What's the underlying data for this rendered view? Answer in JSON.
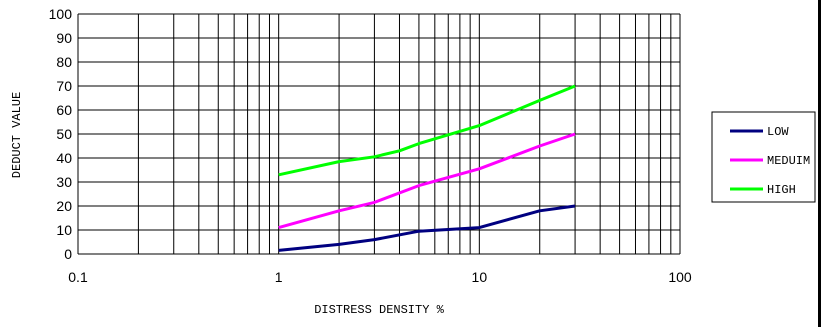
{
  "chart_data": {
    "type": "line",
    "title": "",
    "xlabel": "DISTRESS DENSITY %",
    "ylabel": "DEDUCT VALUE",
    "x_scale": "log",
    "xlim": [
      0.1,
      100
    ],
    "ylim": [
      0,
      100
    ],
    "x_ticks": [
      0.1,
      1,
      10,
      100
    ],
    "x_tick_labels": [
      "0.1",
      "1",
      "10",
      "100"
    ],
    "y_ticks": [
      0,
      10,
      20,
      30,
      40,
      50,
      60,
      70,
      80,
      90,
      100
    ],
    "y_tick_labels": [
      "0",
      "10",
      "20",
      "30",
      "40",
      "50",
      "60",
      "70",
      "80",
      "90",
      "100"
    ],
    "grid": true,
    "legend_position": "right",
    "series": [
      {
        "name": "LOW",
        "color": "#000080",
        "x": [
          1,
          2,
          3,
          5,
          10,
          20,
          30
        ],
        "y": [
          1.5,
          4,
          6,
          9.5,
          11,
          18,
          20
        ]
      },
      {
        "name": "MEDUIM",
        "color": "#ff00ff",
        "x": [
          1,
          2,
          3,
          5,
          10,
          20,
          30
        ],
        "y": [
          11,
          18,
          21.5,
          28.5,
          35.5,
          45,
          50
        ]
      },
      {
        "name": "HIGH",
        "color": "#00ff00",
        "x": [
          1,
          2,
          3,
          4,
          5,
          10,
          20,
          30
        ],
        "y": [
          33,
          38.5,
          40.5,
          43,
          46,
          53.5,
          64,
          70
        ]
      }
    ]
  }
}
